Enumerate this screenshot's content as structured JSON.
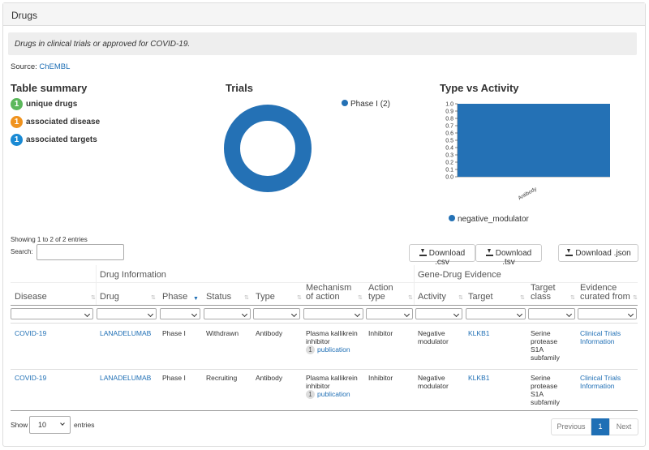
{
  "panel": {
    "title": "Drugs"
  },
  "note": "Drugs in clinical trials or approved for COVID-19.",
  "source": {
    "label": "Source:",
    "link": "ChEMBL"
  },
  "summary": {
    "title": "Table summary",
    "items": [
      {
        "count": "1",
        "label": "unique drugs",
        "color": "#5cb85c"
      },
      {
        "count": "1",
        "label": "associated disease",
        "color": "#f0931e"
      },
      {
        "count": "1",
        "label": "associated targets",
        "color": "#1a8ad4"
      }
    ]
  },
  "trials": {
    "title": "Trials",
    "legend": "Phase I (2)",
    "color": "#2471b5"
  },
  "type_activity": {
    "title": "Type vs Activity",
    "legend": "negative_modulator",
    "color": "#2471b5"
  },
  "chart_data": {
    "type": "bar",
    "title": "Type vs Activity",
    "categories": [
      "Antibody"
    ],
    "series": [
      {
        "name": "negative_modulator",
        "values": [
          1.0
        ]
      }
    ],
    "ylim": [
      0,
      1.0
    ],
    "yticks": [
      "0.0",
      "0.1",
      "0.2",
      "0.3",
      "0.4",
      "0.5",
      "0.6",
      "0.7",
      "0.8",
      "0.9",
      "1.0"
    ]
  },
  "table_info": {
    "showing": "Showing 1 to 2 of 2 entries",
    "search_label": "Search:"
  },
  "downloads": {
    "csv": "Download .csv",
    "tsv": "Download .tsv",
    "json": "Download .json"
  },
  "groups": {
    "drug_info": "Drug Information",
    "gene_drug": "Gene-Drug Evidence"
  },
  "columns": {
    "disease": "Disease",
    "drug": "Drug",
    "phase": "Phase",
    "status": "Status",
    "type": "Type",
    "mech1": "Mechanism",
    "mech2": "of action",
    "act1": "Action",
    "act2": "type",
    "activity": "Activity",
    "target": "Target",
    "tclass1": "Target",
    "tclass2": "class",
    "evid1": "Evidence",
    "evid2": "curated from"
  },
  "rows": [
    {
      "disease": "COVID-19",
      "drug": "LANADELUMAB",
      "phase": "Phase I",
      "status": "Withdrawn",
      "type": "Antibody",
      "mech1": "Plasma kallikrein",
      "mech2": "inhibitor",
      "pubcount": "1",
      "publink": "publication",
      "action": "Inhibitor",
      "act1": "Negative",
      "act2": "modulator",
      "target": "KLKB1",
      "tc1": "Serine",
      "tc2": "protease",
      "tc3": "S1A",
      "tc4": "subfamily",
      "ev1": "Clinical Trials",
      "ev2": "Information"
    },
    {
      "disease": "COVID-19",
      "drug": "LANADELUMAB",
      "phase": "Phase I",
      "status": "Recruiting",
      "type": "Antibody",
      "mech1": "Plasma kallikrein",
      "mech2": "inhibitor",
      "pubcount": "1",
      "publink": "publication",
      "action": "Inhibitor",
      "act1": "Negative",
      "act2": "modulator",
      "target": "KLKB1",
      "tc1": "Serine",
      "tc2": "protease",
      "tc3": "S1A",
      "tc4": "subfamily",
      "ev1": "Clinical Trials",
      "ev2": "Information"
    }
  ],
  "pagination": {
    "show": "Show",
    "entries": "entries",
    "page_size": "10",
    "previous": "Previous",
    "page": "1",
    "next": "Next"
  }
}
